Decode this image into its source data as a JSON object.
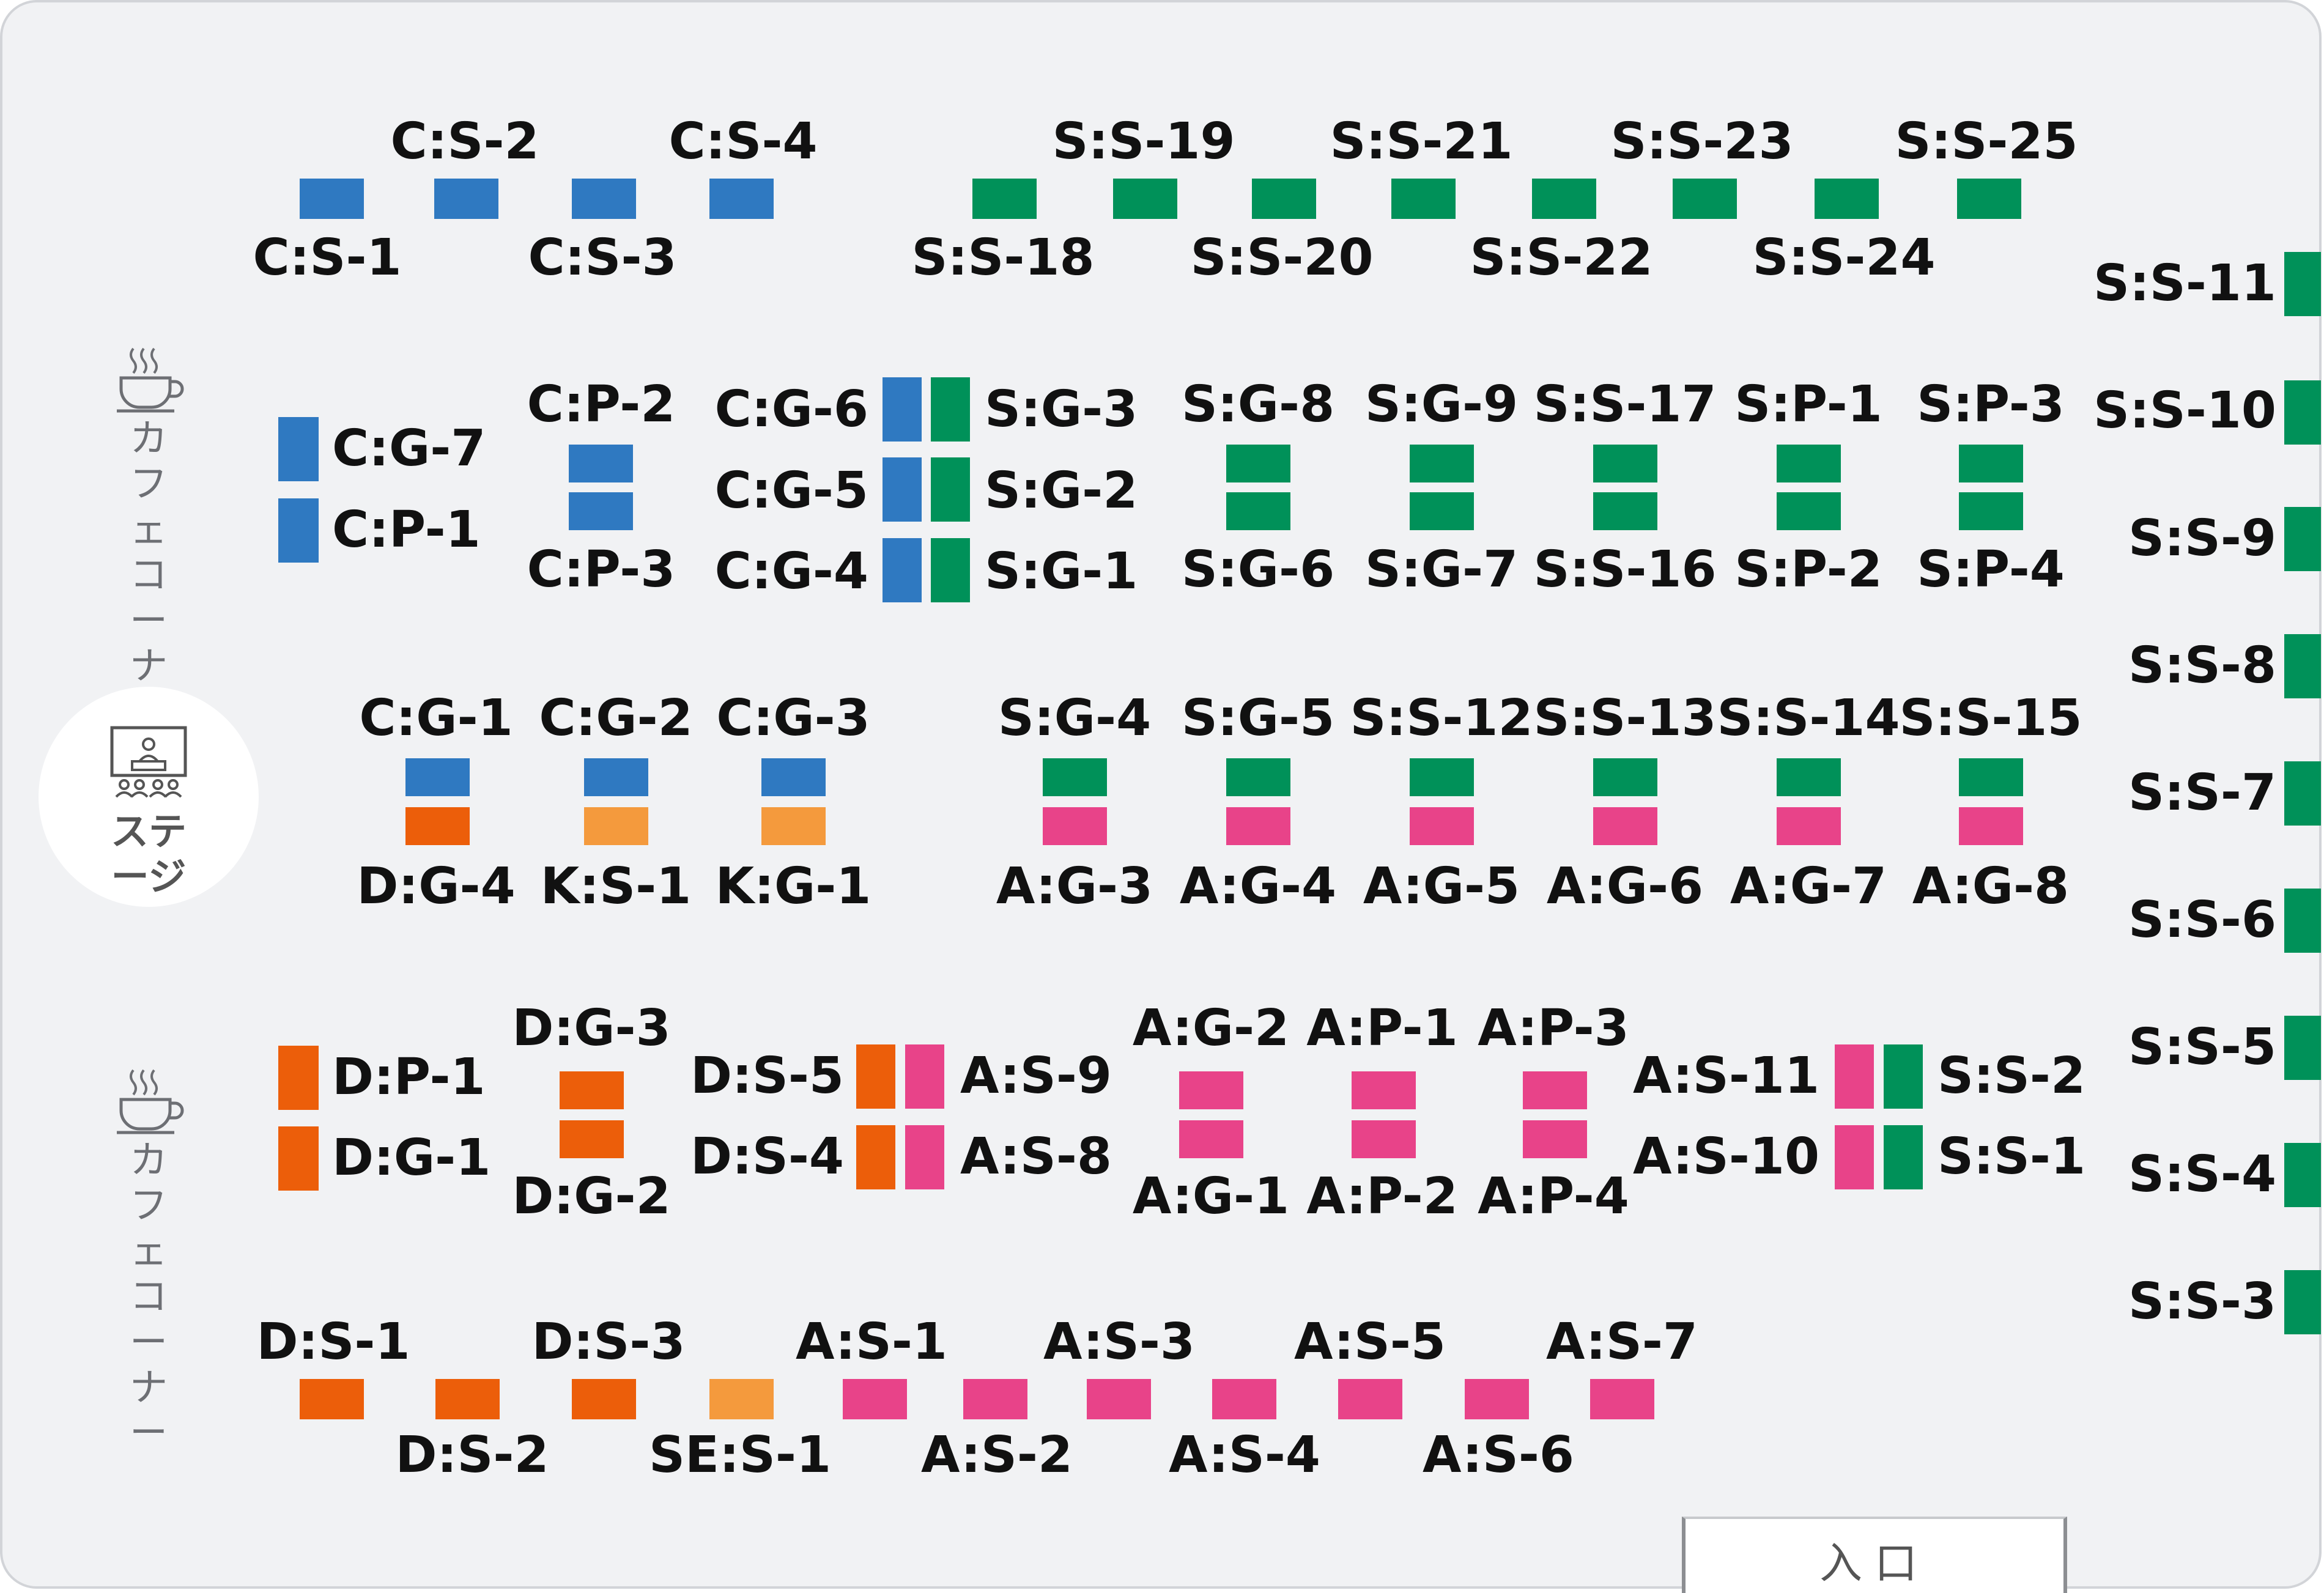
{
  "colors": {
    "blue": "#2f79c1",
    "green": "#009159",
    "orange": "#ec5e0a",
    "lightorange": "#f49a3d",
    "pink": "#e84389",
    "background": "#f1f2f4"
  },
  "areas": {
    "cafe_top": "カフェ\nコーナー",
    "cafe_bottom": "カフェ\nコーナー",
    "stage": "ステージ",
    "entrance": "入口"
  },
  "booths": [
    {
      "id": "C:S-1",
      "color": "blue"
    },
    {
      "id": "C:S-2",
      "color": "blue"
    },
    {
      "id": "C:S-3",
      "color": "blue"
    },
    {
      "id": "C:S-4",
      "color": "blue"
    },
    {
      "id": "S:S-18",
      "color": "green"
    },
    {
      "id": "S:S-19",
      "color": "green"
    },
    {
      "id": "S:S-20",
      "color": "green"
    },
    {
      "id": "S:S-21",
      "color": "green"
    },
    {
      "id": "S:S-22",
      "color": "green"
    },
    {
      "id": "S:S-23",
      "color": "green"
    },
    {
      "id": "S:S-24",
      "color": "green"
    },
    {
      "id": "S:S-25",
      "color": "green"
    },
    {
      "id": "S:S-11",
      "color": "green"
    },
    {
      "id": "S:S-10",
      "color": "green"
    },
    {
      "id": "S:S-9",
      "color": "green"
    },
    {
      "id": "S:S-8",
      "color": "green"
    },
    {
      "id": "S:S-7",
      "color": "green"
    },
    {
      "id": "S:S-6",
      "color": "green"
    },
    {
      "id": "S:S-5",
      "color": "green"
    },
    {
      "id": "S:S-4",
      "color": "green"
    },
    {
      "id": "S:S-3",
      "color": "green"
    },
    {
      "id": "C:G-7",
      "color": "blue"
    },
    {
      "id": "C:P-1",
      "color": "blue"
    },
    {
      "id": "C:P-2",
      "color": "blue"
    },
    {
      "id": "C:P-3",
      "color": "blue"
    },
    {
      "id": "C:G-6",
      "color": "blue"
    },
    {
      "id": "C:G-5",
      "color": "blue"
    },
    {
      "id": "C:G-4",
      "color": "blue"
    },
    {
      "id": "S:G-3",
      "color": "green"
    },
    {
      "id": "S:G-2",
      "color": "green"
    },
    {
      "id": "S:G-1",
      "color": "green"
    },
    {
      "id": "S:G-8",
      "color": "green"
    },
    {
      "id": "S:G-6",
      "color": "green"
    },
    {
      "id": "S:G-9",
      "color": "green"
    },
    {
      "id": "S:G-7",
      "color": "green"
    },
    {
      "id": "S:S-17",
      "color": "green"
    },
    {
      "id": "S:S-16",
      "color": "green"
    },
    {
      "id": "S:P-1",
      "color": "green"
    },
    {
      "id": "S:P-2",
      "color": "green"
    },
    {
      "id": "S:P-3",
      "color": "green"
    },
    {
      "id": "S:P-4",
      "color": "green"
    },
    {
      "id": "C:G-1",
      "color": "blue"
    },
    {
      "id": "C:G-2",
      "color": "blue"
    },
    {
      "id": "C:G-3",
      "color": "blue"
    },
    {
      "id": "D:G-4",
      "color": "orange"
    },
    {
      "id": "K:S-1",
      "color": "lightorange"
    },
    {
      "id": "K:G-1",
      "color": "lightorange"
    },
    {
      "id": "S:G-4",
      "color": "green"
    },
    {
      "id": "S:G-5",
      "color": "green"
    },
    {
      "id": "S:S-12",
      "color": "green"
    },
    {
      "id": "S:S-13",
      "color": "green"
    },
    {
      "id": "S:S-14",
      "color": "green"
    },
    {
      "id": "S:S-15",
      "color": "green"
    },
    {
      "id": "A:G-3",
      "color": "pink"
    },
    {
      "id": "A:G-4",
      "color": "pink"
    },
    {
      "id": "A:G-5",
      "color": "pink"
    },
    {
      "id": "A:G-6",
      "color": "pink"
    },
    {
      "id": "A:G-7",
      "color": "pink"
    },
    {
      "id": "A:G-8",
      "color": "pink"
    },
    {
      "id": "D:P-1",
      "color": "orange"
    },
    {
      "id": "D:G-1",
      "color": "orange"
    },
    {
      "id": "D:G-3",
      "color": "orange"
    },
    {
      "id": "D:G-2",
      "color": "orange"
    },
    {
      "id": "D:S-5",
      "color": "orange"
    },
    {
      "id": "D:S-4",
      "color": "orange"
    },
    {
      "id": "A:S-9",
      "color": "pink"
    },
    {
      "id": "A:S-8",
      "color": "pink"
    },
    {
      "id": "A:G-2",
      "color": "pink"
    },
    {
      "id": "A:G-1",
      "color": "pink"
    },
    {
      "id": "A:P-1",
      "color": "pink"
    },
    {
      "id": "A:P-2",
      "color": "pink"
    },
    {
      "id": "A:P-3",
      "color": "pink"
    },
    {
      "id": "A:P-4",
      "color": "pink"
    },
    {
      "id": "A:S-11",
      "color": "pink"
    },
    {
      "id": "A:S-10",
      "color": "pink"
    },
    {
      "id": "S:S-2",
      "color": "green"
    },
    {
      "id": "S:S-1",
      "color": "green"
    },
    {
      "id": "D:S-1",
      "color": "orange"
    },
    {
      "id": "D:S-2",
      "color": "orange"
    },
    {
      "id": "D:S-3",
      "color": "orange"
    },
    {
      "id": "SE:S-1",
      "color": "lightorange"
    },
    {
      "id": "A:S-1",
      "color": "pink"
    },
    {
      "id": "A:S-2",
      "color": "pink"
    },
    {
      "id": "A:S-3",
      "color": "pink"
    },
    {
      "id": "A:S-4",
      "color": "pink"
    },
    {
      "id": "A:S-5",
      "color": "pink"
    },
    {
      "id": "A:S-6",
      "color": "pink"
    },
    {
      "id": "A:S-7",
      "color": "pink"
    }
  ]
}
